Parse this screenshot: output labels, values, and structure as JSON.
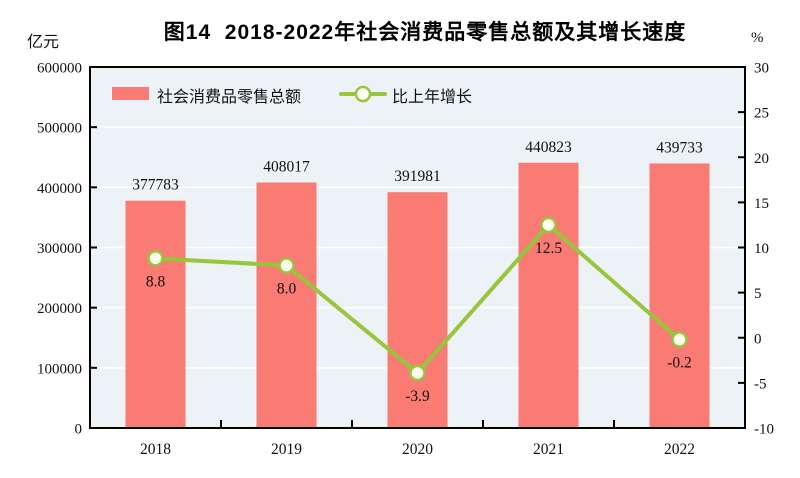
{
  "chart_data": {
    "type": "bar+line",
    "title": "图14  2018-2022年社会消费品零售总额及其增长速度",
    "categories": [
      "2018",
      "2019",
      "2020",
      "2021",
      "2022"
    ],
    "series": [
      {
        "name": "社会消费品零售总额",
        "type": "bar",
        "axis": "left",
        "values": [
          377783,
          408017,
          391981,
          440823,
          439733
        ],
        "labels": [
          "377783",
          "408017",
          "391981",
          "440823",
          "439733"
        ]
      },
      {
        "name": "比上年增长",
        "type": "line",
        "axis": "right",
        "values": [
          8.8,
          8.0,
          -3.9,
          12.5,
          -0.2
        ],
        "labels": [
          "8.8",
          "8.0",
          "-3.9",
          "12.5",
          "-0.2"
        ]
      }
    ],
    "left_axis": {
      "label": "亿元",
      "min": 0,
      "max": 600000,
      "tick_step": 100000,
      "ticks": [
        "0",
        "100000",
        "200000",
        "300000",
        "400000",
        "500000",
        "600000"
      ]
    },
    "right_axis": {
      "label": "%",
      "min": -10,
      "max": 30,
      "tick_step": 5,
      "ticks": [
        "-10",
        "-5",
        "0",
        "5",
        "10",
        "15",
        "20",
        "25",
        "30"
      ]
    },
    "legend_position": "top-left-inside",
    "grid": "horizontal-white",
    "colors": {
      "bar": "#F97B73",
      "line": "#95C63C",
      "marker_fill": "#FFFFF2",
      "plot_bg": "#EDF2F7",
      "grid": "#FFFFFF",
      "axis": "#000000",
      "label_text": "#1A1A1A"
    }
  }
}
